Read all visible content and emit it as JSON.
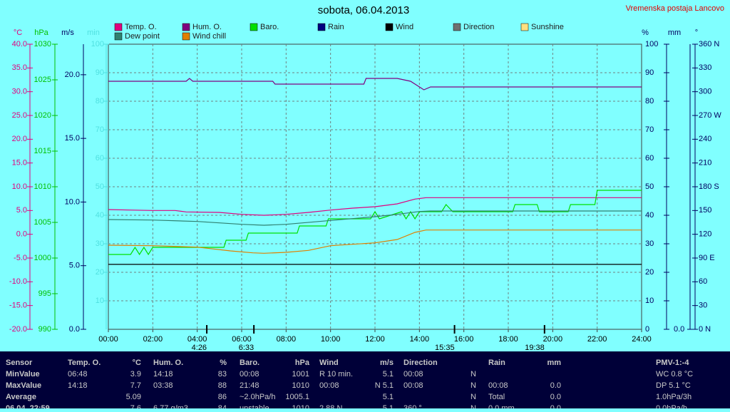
{
  "chart_data": {
    "type": "line",
    "title": "sobota, 06.04.2013",
    "station": "Vremenska postaja Lancovo",
    "grid": true,
    "xlim": [
      0,
      24
    ],
    "xticks": [
      {
        "value": 0,
        "label": "00:00"
      },
      {
        "value": 2,
        "label": "02:00"
      },
      {
        "value": 4,
        "label": "04:00"
      },
      {
        "value": 6,
        "label": "06:00"
      },
      {
        "value": 8,
        "label": "08:00"
      },
      {
        "value": 10,
        "label": "10:00"
      },
      {
        "value": 12,
        "label": "12:00"
      },
      {
        "value": 14,
        "label": "14:00"
      },
      {
        "value": 16,
        "label": "16:00"
      },
      {
        "value": 18,
        "label": "18:00"
      },
      {
        "value": 20,
        "label": "20:00"
      },
      {
        "value": 22,
        "label": "22:00"
      },
      {
        "value": 24,
        "label": "24:00"
      }
    ],
    "annotations": [
      {
        "x": 4.43,
        "label": "4:26"
      },
      {
        "x": 6.55,
        "label": "6:33"
      },
      {
        "x": 15.58,
        "label": "15:35"
      },
      {
        "x": 19.63,
        "label": "19:38"
      }
    ],
    "axes": [
      {
        "label": "°C",
        "color": "#e0007f",
        "lim": [
          -20,
          40
        ],
        "ticks": [
          {
            "value": -20,
            "label": "-20.0"
          },
          {
            "value": -15,
            "label": "-15.0"
          },
          {
            "value": -10,
            "label": "-10.0"
          },
          {
            "value": -5,
            "label": "-5.0"
          },
          {
            "value": 0,
            "label": "0.0"
          },
          {
            "value": 5,
            "label": "5.0"
          },
          {
            "value": 10,
            "label": "10.0"
          },
          {
            "value": 15,
            "label": "15.0"
          },
          {
            "value": 20,
            "label": "20.0"
          },
          {
            "value": 25,
            "label": "25.0"
          },
          {
            "value": 30,
            "label": "30.0"
          },
          {
            "value": 35,
            "label": "35.0"
          },
          {
            "value": 40,
            "label": "40.0"
          }
        ]
      },
      {
        "label": "hPa",
        "color": "#00c000",
        "lim": [
          990,
          1030
        ],
        "ticks": [
          990,
          995,
          1000,
          1005,
          1010,
          1015,
          1020,
          1025,
          1030
        ]
      },
      {
        "label": "m/s",
        "color": "#000060",
        "lim": [
          0,
          22.4
        ],
        "ticks": [
          {
            "value": 0,
            "label": "0.0"
          },
          {
            "value": 5,
            "label": "5.0"
          },
          {
            "value": 10,
            "label": "10.0"
          },
          {
            "value": 15,
            "label": "15.0"
          },
          {
            "value": 20,
            "label": "20.0"
          }
        ]
      },
      {
        "label": "min",
        "color": "#50e0e0",
        "lim": [
          0,
          100
        ],
        "ticks": [
          10,
          20,
          30,
          40,
          50,
          60,
          70,
          80,
          90,
          100
        ]
      },
      {
        "label": "%",
        "color": "#000060",
        "lim": [
          0,
          100
        ],
        "ticks": [
          0,
          10,
          20,
          30,
          40,
          50,
          60,
          70,
          80,
          90,
          100
        ]
      },
      {
        "label": "mm",
        "color": "#000060",
        "lim": [
          0,
          10
        ],
        "ticks": [
          {
            "value": 0,
            "label": "0.0"
          }
        ]
      },
      {
        "label": "°",
        "color": "#000060",
        "lim": [
          0,
          360
        ],
        "ticks": [
          {
            "value": 0,
            "label": "0 N"
          },
          30,
          60,
          {
            "value": 90,
            "label": "90 E"
          },
          120,
          150,
          {
            "value": 180,
            "label": "180 S"
          },
          210,
          240,
          {
            "value": 270,
            "label": "270 W"
          },
          300,
          330,
          {
            "value": 360,
            "label": "360 N"
          }
        ]
      }
    ],
    "series": [
      {
        "name": "Temp. O.",
        "color": "#e0007f",
        "axis": "°C",
        "x": [
          0,
          1,
          2,
          3,
          3.5,
          5,
          6,
          7,
          8,
          9,
          10,
          11,
          12,
          13,
          13.8,
          14.3,
          24
        ],
        "values": [
          5.2,
          5.1,
          5.0,
          5.0,
          4.7,
          4.6,
          4.2,
          4.0,
          4.2,
          4.6,
          5.1,
          5.5,
          5.8,
          6.4,
          7.4,
          7.7,
          7.7
        ]
      },
      {
        "name": "Hum. O.",
        "color": "#800080",
        "axis": "%",
        "x": [
          0,
          3.5,
          3.65,
          3.8,
          7.4,
          7.5,
          11.5,
          11.6,
          13,
          13.6,
          14.2,
          14.5,
          24
        ],
        "values": [
          87,
          87,
          88,
          87,
          87,
          86,
          86,
          88,
          88,
          87,
          84,
          85,
          85
        ]
      },
      {
        "name": "Baro.",
        "color": "#00e000",
        "axis": "hPa",
        "x": [
          0,
          1.0,
          1.2,
          1.4,
          1.6,
          1.8,
          2.0,
          5.2,
          5.3,
          6.2,
          6.3,
          8.5,
          8.6,
          9.8,
          9.9,
          11.8,
          12.0,
          12.2,
          13.2,
          13.4,
          13.6,
          13.8,
          14.0,
          15.0,
          15.2,
          15.5,
          18.2,
          18.3,
          19.3,
          19.4,
          20.7,
          20.8,
          21.9,
          22.0,
          24
        ],
        "values": [
          1000.5,
          1000.5,
          1001.5,
          1000.5,
          1001.5,
          1000.5,
          1001.5,
          1001.5,
          1002.5,
          1002.5,
          1003.5,
          1003.5,
          1004.5,
          1004.5,
          1005.5,
          1005.5,
          1006.5,
          1005.5,
          1006.5,
          1005.5,
          1006.5,
          1005.5,
          1006.5,
          1006.5,
          1007.5,
          1006.5,
          1006.5,
          1007.5,
          1007.5,
          1006.5,
          1006.5,
          1007.5,
          1007.5,
          1009.5,
          1009.5
        ]
      },
      {
        "name": "Rain",
        "color": "#000080"
      },
      {
        "name": "Wind",
        "color": "#000000",
        "axis": "m/s",
        "x": [
          0,
          24
        ],
        "values": [
          5.1,
          5.1
        ]
      },
      {
        "name": "Direction",
        "color": "#707070"
      },
      {
        "name": "Sunshine",
        "color": "#ffe080"
      },
      {
        "name": "Dew point",
        "color": "#308070",
        "axis": "°C",
        "x": [
          0,
          2,
          4,
          6,
          7,
          8,
          10,
          12,
          13,
          14,
          14.5,
          24
        ],
        "values": [
          3.1,
          3.0,
          2.7,
          2.1,
          1.9,
          2.1,
          2.9,
          3.7,
          4.2,
          4.8,
          4.9,
          4.9
        ]
      },
      {
        "name": "Wind chill",
        "color": "#e08000",
        "axis": "°C",
        "x": [
          0,
          2,
          4,
          5.5,
          6.5,
          7,
          8,
          9,
          10,
          11,
          12,
          13,
          13.8,
          14.3,
          24
        ],
        "values": [
          -2.3,
          -2.4,
          -2.7,
          -3.5,
          -3.9,
          -4.0,
          -3.8,
          -3.4,
          -2.4,
          -2.1,
          -1.8,
          -1.1,
          0.4,
          0.9,
          0.9
        ]
      }
    ]
  },
  "table": {
    "header": [
      "Sensor",
      "Temp. O.",
      "°C",
      "Hum. O.",
      "%",
      "Baro.",
      "hPa",
      "Wind",
      "m/s",
      "Direction",
      "",
      "Rain",
      "mm",
      "PMV-1:-4"
    ],
    "rows": [
      [
        "MinValue",
        "06:48",
        "3.9",
        "14:18",
        "83",
        "00:08",
        "1001",
        "R 10 min.",
        "5.1",
        "00:08",
        "N",
        "",
        "",
        "WC 0.8 °C"
      ],
      [
        "MaxValue",
        "14:18",
        "7.7",
        "03:38",
        "88",
        "21:48",
        "1010",
        "00:08",
        "N 5.1",
        "00:08",
        "N",
        "00:08",
        "0.0",
        "DP 5.1 °C"
      ],
      [
        "Average",
        "",
        "5.09",
        "",
        "86",
        "~2.0hPa/h",
        "1005.1",
        "",
        "5.1",
        "",
        "N",
        "Total",
        "0.0",
        "1.0hPa/3h"
      ],
      [
        "06.04. 22:59",
        "",
        "7.6",
        "6.77 g/m3",
        "84",
        "unstable",
        "1010",
        "2.88 N",
        "5.1",
        "360 °",
        "N",
        "0.0 mm",
        "0.0",
        "0.0hPa/h"
      ]
    ]
  }
}
